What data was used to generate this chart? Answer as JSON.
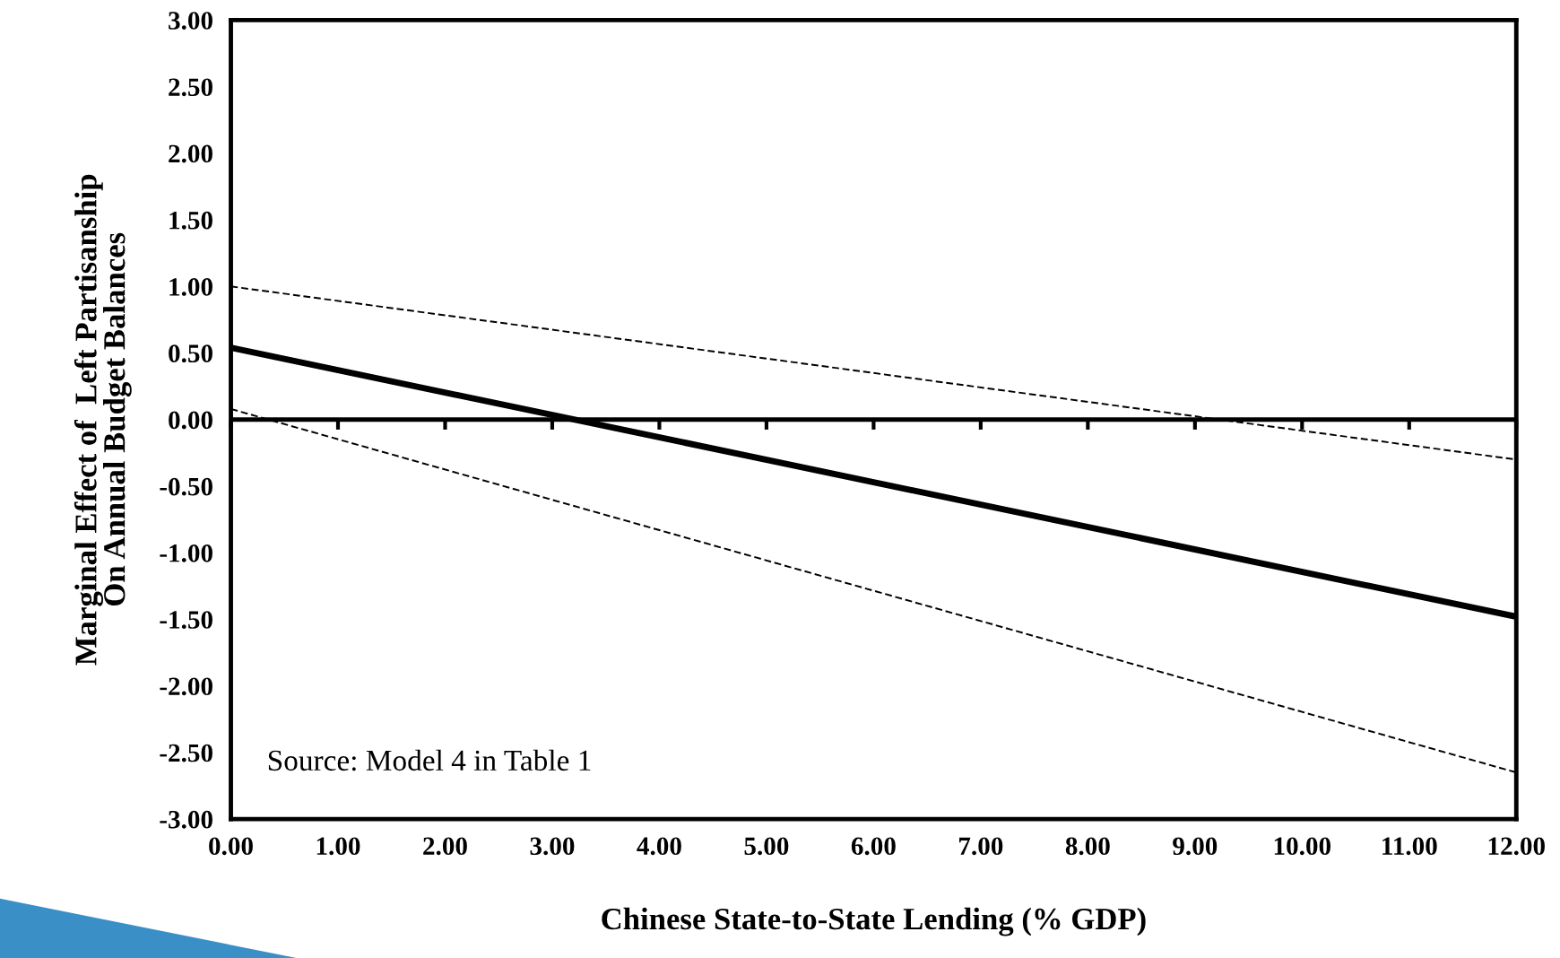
{
  "chart_data": {
    "type": "line",
    "xlabel": "Chinese State-to-State Lending (% GDP)",
    "ylabel": "Marginal Effect of  Left Partisanship\nOn Annual Budget Balances",
    "x": [
      0,
      12
    ],
    "series": [
      {
        "color": "#000000",
        "values": [
          0.54,
          -1.48
        ],
        "line_style": "solid"
      },
      {
        "color": "#000000",
        "values": [
          1.0,
          -0.3
        ],
        "line_style": "dashed"
      },
      {
        "color": "#000000",
        "values": [
          0.08,
          -2.65
        ],
        "line_style": "dashed"
      }
    ],
    "xlim": [
      0,
      12
    ],
    "xticks": [
      {
        "value": 0,
        "label": "0.00"
      },
      {
        "value": 1,
        "label": "1.00"
      },
      {
        "value": 2,
        "label": "2.00"
      },
      {
        "value": 3,
        "label": "3.00"
      },
      {
        "value": 4,
        "label": "4.00"
      },
      {
        "value": 5,
        "label": "5.00"
      },
      {
        "value": 6,
        "label": "6.00"
      },
      {
        "value": 7,
        "label": "7.00"
      },
      {
        "value": 8,
        "label": "8.00"
      },
      {
        "value": 9,
        "label": "9.00"
      },
      {
        "value": 10,
        "label": "10.00"
      },
      {
        "value": 11,
        "label": "11.00"
      },
      {
        "value": 12,
        "label": "12.00"
      }
    ],
    "ylim": [
      -3,
      3
    ],
    "yticks": [
      {
        "value": 3,
        "label": "3.00"
      },
      {
        "value": 2.5,
        "label": "2.50"
      },
      {
        "value": 2,
        "label": "2.00"
      },
      {
        "value": 1.5,
        "label": "1.50"
      },
      {
        "value": 1,
        "label": "1.00"
      },
      {
        "value": 0.5,
        "label": "0.50"
      },
      {
        "value": 0,
        "label": "0.00"
      },
      {
        "value": -0.5,
        "label": "-0.50"
      },
      {
        "value": -1,
        "label": "-1.00"
      },
      {
        "value": -1.5,
        "label": "-1.50"
      },
      {
        "value": -2,
        "label": "-2.00"
      },
      {
        "value": -2.5,
        "label": "-2.50"
      },
      {
        "value": -3,
        "label": "-3.00"
      }
    ],
    "ref_lines": [
      {
        "axis": "y",
        "value": 0,
        "color": "#000000"
      }
    ],
    "annotations": [
      "Source: Model 4 in Table 1"
    ],
    "grid": false,
    "legend": false
  }
}
